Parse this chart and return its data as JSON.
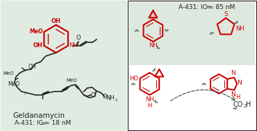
{
  "bg_color": "#f2f2f2",
  "panel_left_bg": "#e0ebe2",
  "panel_right_bg": "#ffffff",
  "panel_top_right_bg": "#dde8df",
  "red": "#cc0000",
  "black": "#222222",
  "title_left": "Geldanamycin",
  "label_a431_left": "A-431: IC",
  "label_50": "50",
  "label_18nm": "= 18 nM",
  "label_a431_right": "A-431: IC",
  "label_85nm": "= 85 nM",
  "label_co2h": "CO",
  "label_2": "2",
  "label_h": "H"
}
